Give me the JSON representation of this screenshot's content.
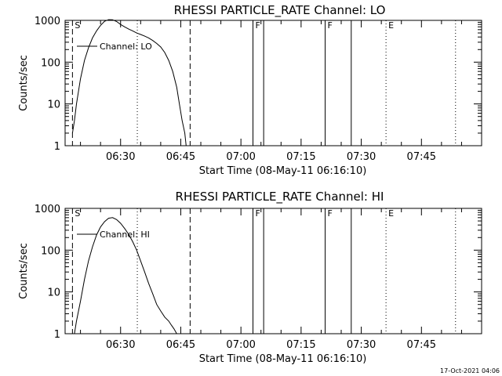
{
  "footer_text": "17-Oct-2021 04:06",
  "chart_data": [
    {
      "type": "line",
      "title": "RHESSI PARTICLE_RATE Channel: LO",
      "xlabel": "Start Time (08-May-11 06:16:10)",
      "ylabel": "Counts/sec",
      "yscale": "log",
      "ylim": [
        1,
        1000
      ],
      "xlim": [
        "06:16:10",
        "08:00:00"
      ],
      "xticks": [
        "06:30",
        "06:45",
        "07:00",
        "07:15",
        "07:30",
        "07:45"
      ],
      "yticks": [
        "1",
        "10",
        "100",
        "1000"
      ],
      "legend": {
        "label": "Channel: LO",
        "position": "top-left"
      },
      "flags": [
        {
          "time": "06:18:00",
          "label": "S",
          "style": "dashed"
        },
        {
          "time": "06:47:20",
          "label": "",
          "style": "dashed"
        },
        {
          "time": "06:34:10",
          "label": "",
          "style": "dotted"
        },
        {
          "time": "07:03:00",
          "label": "F",
          "style": "solid"
        },
        {
          "time": "07:05:40",
          "label": "",
          "style": "solid"
        },
        {
          "time": "07:21:00",
          "label": "F",
          "style": "solid"
        },
        {
          "time": "07:27:30",
          "label": "",
          "style": "solid"
        },
        {
          "time": "07:36:10",
          "label": "E",
          "style": "dotted"
        },
        {
          "time": "07:53:30",
          "label": "",
          "style": "dotted"
        }
      ],
      "series": [
        {
          "name": "Channel: LO",
          "x": [
            "06:18:00",
            "06:18:30",
            "06:19:00",
            "06:20:00",
            "06:21:00",
            "06:22:00",
            "06:23:00",
            "06:24:00",
            "06:25:00",
            "06:26:00",
            "06:27:00",
            "06:28:00",
            "06:29:00",
            "06:30:00",
            "06:31:00",
            "06:32:00",
            "06:33:00",
            "06:34:00",
            "06:35:00",
            "06:36:00",
            "06:37:00",
            "06:38:00",
            "06:39:00",
            "06:40:00",
            "06:41:00",
            "06:42:00",
            "06:43:00",
            "06:44:00",
            "06:44:40",
            "06:45:20",
            "06:46:00",
            "06:46:20"
          ],
          "y": [
            2,
            4,
            10,
            40,
            110,
            220,
            380,
            560,
            760,
            950,
            1040,
            1030,
            940,
            800,
            700,
            620,
            560,
            500,
            460,
            420,
            380,
            330,
            280,
            230,
            170,
            110,
            60,
            25,
            10,
            4,
            2,
            1
          ]
        }
      ]
    },
    {
      "type": "line",
      "title": "RHESSI PARTICLE_RATE Channel: HI",
      "xlabel": "Start Time (08-May-11 06:16:10)",
      "ylabel": "Counts/sec",
      "yscale": "log",
      "ylim": [
        1,
        1000
      ],
      "xlim": [
        "06:16:10",
        "08:00:00"
      ],
      "xticks": [
        "06:30",
        "06:45",
        "07:00",
        "07:15",
        "07:30",
        "07:45"
      ],
      "yticks": [
        "1",
        "10",
        "100",
        "1000"
      ],
      "legend": {
        "label": "Channel: HI",
        "position": "top-left"
      },
      "flags": [
        {
          "time": "06:18:00",
          "label": "S",
          "style": "dashed"
        },
        {
          "time": "06:47:20",
          "label": "",
          "style": "dashed"
        },
        {
          "time": "06:34:10",
          "label": "",
          "style": "dotted"
        },
        {
          "time": "07:03:00",
          "label": "F",
          "style": "solid"
        },
        {
          "time": "07:05:40",
          "label": "",
          "style": "solid"
        },
        {
          "time": "07:21:00",
          "label": "F",
          "style": "solid"
        },
        {
          "time": "07:27:30",
          "label": "",
          "style": "solid"
        },
        {
          "time": "07:36:10",
          "label": "E",
          "style": "dotted"
        },
        {
          "time": "07:53:30",
          "label": "",
          "style": "dotted"
        }
      ],
      "series": [
        {
          "name": "Channel: HI",
          "x": [
            "06:18:30",
            "06:19:00",
            "06:20:00",
            "06:21:00",
            "06:22:00",
            "06:23:00",
            "06:24:00",
            "06:25:00",
            "06:26:00",
            "06:27:00",
            "06:28:00",
            "06:29:00",
            "06:30:00",
            "06:31:00",
            "06:32:00",
            "06:33:00",
            "06:34:00",
            "06:35:00",
            "06:36:00",
            "06:37:00",
            "06:38:00",
            "06:39:00",
            "06:40:00",
            "06:41:00",
            "06:42:00",
            "06:42:40",
            "06:43:20",
            "06:44:00"
          ],
          "y": [
            1,
            2,
            6,
            20,
            55,
            120,
            230,
            360,
            480,
            580,
            600,
            540,
            440,
            330,
            240,
            160,
            100,
            55,
            30,
            16,
            9,
            5,
            3.5,
            2.5,
            2,
            1.6,
            1.3,
            1
          ]
        }
      ]
    }
  ]
}
